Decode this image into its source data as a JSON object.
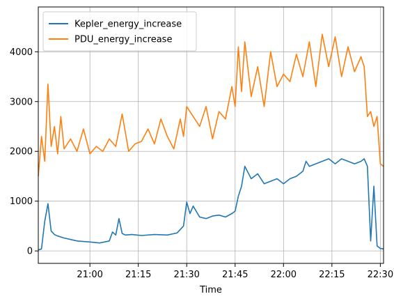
{
  "chart_data": {
    "type": "line",
    "title": "",
    "xlabel": "Time",
    "ylabel": "",
    "x_unit": "clock time",
    "xlim": [
      "20:44",
      "22:31"
    ],
    "ylim": [
      -250,
      4900
    ],
    "x_ticks": [
      "21:00",
      "21:15",
      "21:30",
      "21:45",
      "22:00",
      "22:15",
      "22:30"
    ],
    "y_ticks": [
      0,
      1000,
      2000,
      3000,
      4000
    ],
    "grid": true,
    "legend_position": "top-left",
    "series": [
      {
        "name": "Kepler_energy_increase",
        "color": "#1f77b4",
        "x": [
          "20:44",
          "20:45",
          "20:46",
          "20:47",
          "20:48",
          "20:49",
          "20:50",
          "20:52",
          "20:54",
          "20:56",
          "20:58",
          "21:00",
          "21:03",
          "21:06",
          "21:07",
          "21:08",
          "21:09",
          "21:10",
          "21:11",
          "21:13",
          "21:16",
          "21:20",
          "21:24",
          "21:27",
          "21:29",
          "21:30",
          "21:31",
          "21:32",
          "21:34",
          "21:36",
          "21:38",
          "21:40",
          "21:42",
          "21:44",
          "21:45",
          "21:46",
          "21:47",
          "21:48",
          "21:50",
          "21:52",
          "21:54",
          "21:56",
          "21:58",
          "22:00",
          "22:02",
          "22:04",
          "22:06",
          "22:07",
          "22:08",
          "22:10",
          "22:12",
          "22:14",
          "22:16",
          "22:18",
          "22:20",
          "22:22",
          "22:24",
          "22:25",
          "22:26",
          "22:27",
          "22:28",
          "22:29",
          "22:30",
          "22:31"
        ],
        "values": [
          20,
          40,
          600,
          950,
          400,
          330,
          300,
          260,
          230,
          200,
          190,
          180,
          160,
          200,
          380,
          320,
          650,
          350,
          320,
          330,
          310,
          330,
          320,
          360,
          500,
          980,
          750,
          900,
          680,
          650,
          700,
          720,
          680,
          750,
          800,
          1100,
          1300,
          1700,
          1450,
          1550,
          1350,
          1400,
          1450,
          1350,
          1450,
          1500,
          1600,
          1800,
          1700,
          1750,
          1800,
          1850,
          1750,
          1850,
          1800,
          1750,
          1800,
          1850,
          1700,
          200,
          1300,
          100,
          50,
          40
        ]
      },
      {
        "name": "PDU_energy_increase",
        "color": "#ff7f0e",
        "x": [
          "20:44",
          "20:45",
          "20:46",
          "20:47",
          "20:48",
          "20:49",
          "20:50",
          "20:51",
          "20:52",
          "20:54",
          "20:56",
          "20:58",
          "21:00",
          "21:02",
          "21:04",
          "21:06",
          "21:08",
          "21:10",
          "21:12",
          "21:14",
          "21:16",
          "21:18",
          "21:20",
          "21:22",
          "21:24",
          "21:26",
          "21:28",
          "21:29",
          "21:30",
          "21:32",
          "21:34",
          "21:36",
          "21:38",
          "21:40",
          "21:42",
          "21:44",
          "21:45",
          "21:46",
          "21:47",
          "21:48",
          "21:50",
          "21:52",
          "21:54",
          "21:56",
          "21:58",
          "22:00",
          "22:02",
          "22:04",
          "22:06",
          "22:08",
          "22:10",
          "22:12",
          "22:14",
          "22:16",
          "22:18",
          "22:20",
          "22:22",
          "22:24",
          "22:25",
          "22:26",
          "22:27",
          "22:28",
          "22:29",
          "22:30",
          "22:31"
        ],
        "values": [
          1500,
          2300,
          1800,
          3350,
          2100,
          2500,
          1950,
          2700,
          2050,
          2250,
          2000,
          2450,
          1950,
          2100,
          2000,
          2250,
          2100,
          2750,
          2000,
          2150,
          2200,
          2450,
          2150,
          2650,
          2300,
          2050,
          2650,
          2300,
          2900,
          2700,
          2500,
          2900,
          2250,
          2800,
          2650,
          3300,
          2900,
          4100,
          3200,
          4200,
          3100,
          3700,
          2900,
          4000,
          3300,
          3550,
          3400,
          3950,
          3500,
          4200,
          3300,
          4350,
          3700,
          4300,
          3500,
          4100,
          3600,
          3900,
          3700,
          2700,
          2800,
          2500,
          2700,
          1750,
          1700
        ]
      }
    ]
  }
}
